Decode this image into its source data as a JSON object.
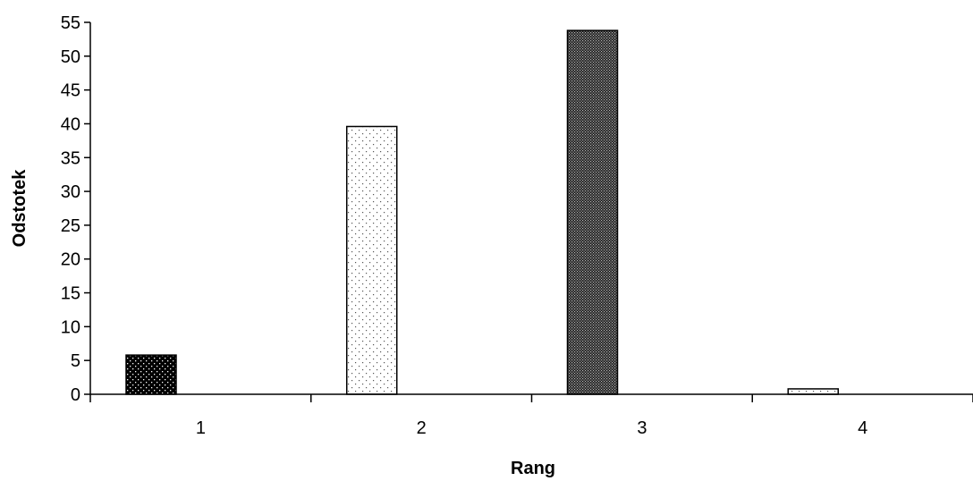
{
  "chart_data": {
    "type": "bar",
    "title": "",
    "xlabel": "Rang",
    "ylabel": "Odstotek",
    "categories": [
      "1",
      "2",
      "3",
      "4"
    ],
    "values": [
      5.8,
      39.6,
      53.8,
      0.8
    ],
    "bar_fills": [
      "dense-dark-dots",
      "sparse-light-dots",
      "dark-checker",
      "sparse-light-dots"
    ],
    "ylim": [
      0,
      55
    ],
    "yticks": [
      "0",
      "5",
      "10",
      "15",
      "20",
      "25",
      "30",
      "35",
      "40",
      "45",
      "50",
      "55"
    ],
    "grid": false,
    "legend": "none"
  }
}
